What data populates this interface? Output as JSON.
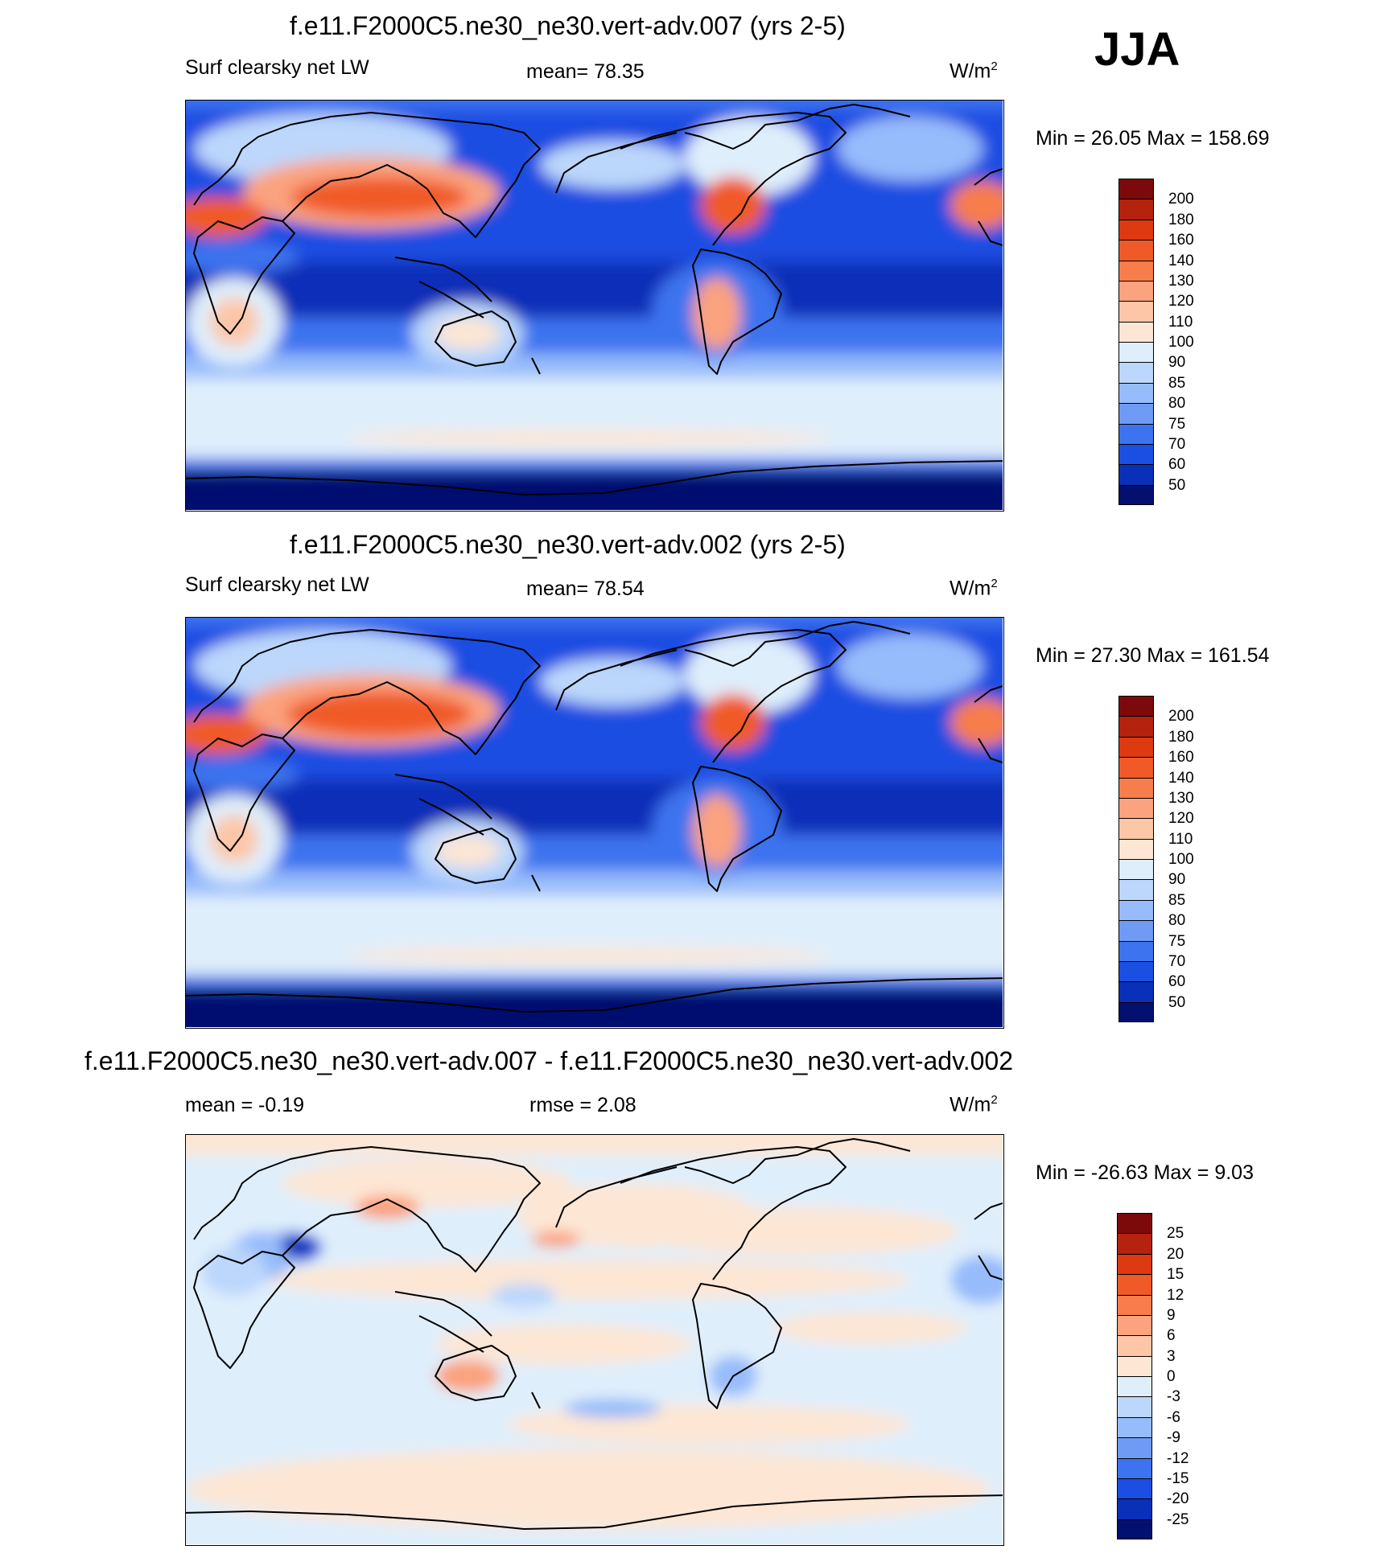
{
  "season": "JJA",
  "panels": [
    {
      "title": "f.e11.F2000C5.ne30_ne30.vert-adv.007 (yrs 2-5)",
      "left_label": "Surf clearsky net LW",
      "center_label": "mean=  78.35",
      "units": "W/m",
      "units_sup": "2",
      "minmax": "Min =  26.05 Max = 158.69"
    },
    {
      "title": "f.e11.F2000C5.ne30_ne30.vert-adv.002 (yrs 2-5)",
      "left_label": "Surf clearsky net LW",
      "center_label": "mean=  78.54",
      "units": "W/m",
      "units_sup": "2",
      "minmax": "Min =  27.30 Max = 161.54"
    },
    {
      "title": "f.e11.F2000C5.ne30_ne30.vert-adv.007 - f.e11.F2000C5.ne30_ne30.vert-adv.002",
      "left_label": "mean =  -0.19",
      "center_label": "rmse =   2.08",
      "units": "W/m",
      "units_sup": "2",
      "minmax": "Min = -26.63 Max =   9.03"
    }
  ],
  "colorbars": [
    {
      "labels": [
        "200",
        "180",
        "160",
        "140",
        "130",
        "120",
        "110",
        "100",
        "90",
        "85",
        "80",
        "75",
        "70",
        "60",
        "50"
      ],
      "colors": [
        "#7d0a0a",
        "#b5220e",
        "#dd3a12",
        "#f05a28",
        "#f77d4c",
        "#fba27e",
        "#fdc6a7",
        "#fde6d4",
        "#dfeefb",
        "#bcd7fb",
        "#97bcfb",
        "#6f9bf5",
        "#3e73ef",
        "#1b4ee2",
        "#0a2fb8",
        "#03106f"
      ]
    },
    {
      "labels": [
        "200",
        "180",
        "160",
        "140",
        "130",
        "120",
        "110",
        "100",
        "90",
        "85",
        "80",
        "75",
        "70",
        "60",
        "50"
      ],
      "colors": [
        "#7d0a0a",
        "#b5220e",
        "#dd3a12",
        "#f05a28",
        "#f77d4c",
        "#fba27e",
        "#fdc6a7",
        "#fde6d4",
        "#dfeefb",
        "#bcd7fb",
        "#97bcfb",
        "#6f9bf5",
        "#3e73ef",
        "#1b4ee2",
        "#0a2fb8",
        "#03106f"
      ]
    },
    {
      "labels": [
        "25",
        "20",
        "15",
        "12",
        "9",
        "6",
        "3",
        "0",
        "-3",
        "-6",
        "-9",
        "-12",
        "-15",
        "-20",
        "-25"
      ],
      "colors": [
        "#7d0a0a",
        "#b5220e",
        "#dd3a12",
        "#f05a28",
        "#f77d4c",
        "#fba27e",
        "#fdc6a7",
        "#fde6d4",
        "#dfeefb",
        "#bcd7fb",
        "#97bcfb",
        "#6f9bf5",
        "#3e73ef",
        "#1b4ee2",
        "#0a2fb8",
        "#03106f"
      ]
    }
  ],
  "colors": {
    "ocean_mid": "#1b4ee2",
    "ocean_deep": "#0a2fb8",
    "polar": "#03106f",
    "southern_band": "#dfeefb",
    "hot_land": "#f05a28",
    "diff_background": "#dfeefb",
    "diff_positive": "#fde6d4",
    "coastline": "#000000"
  }
}
